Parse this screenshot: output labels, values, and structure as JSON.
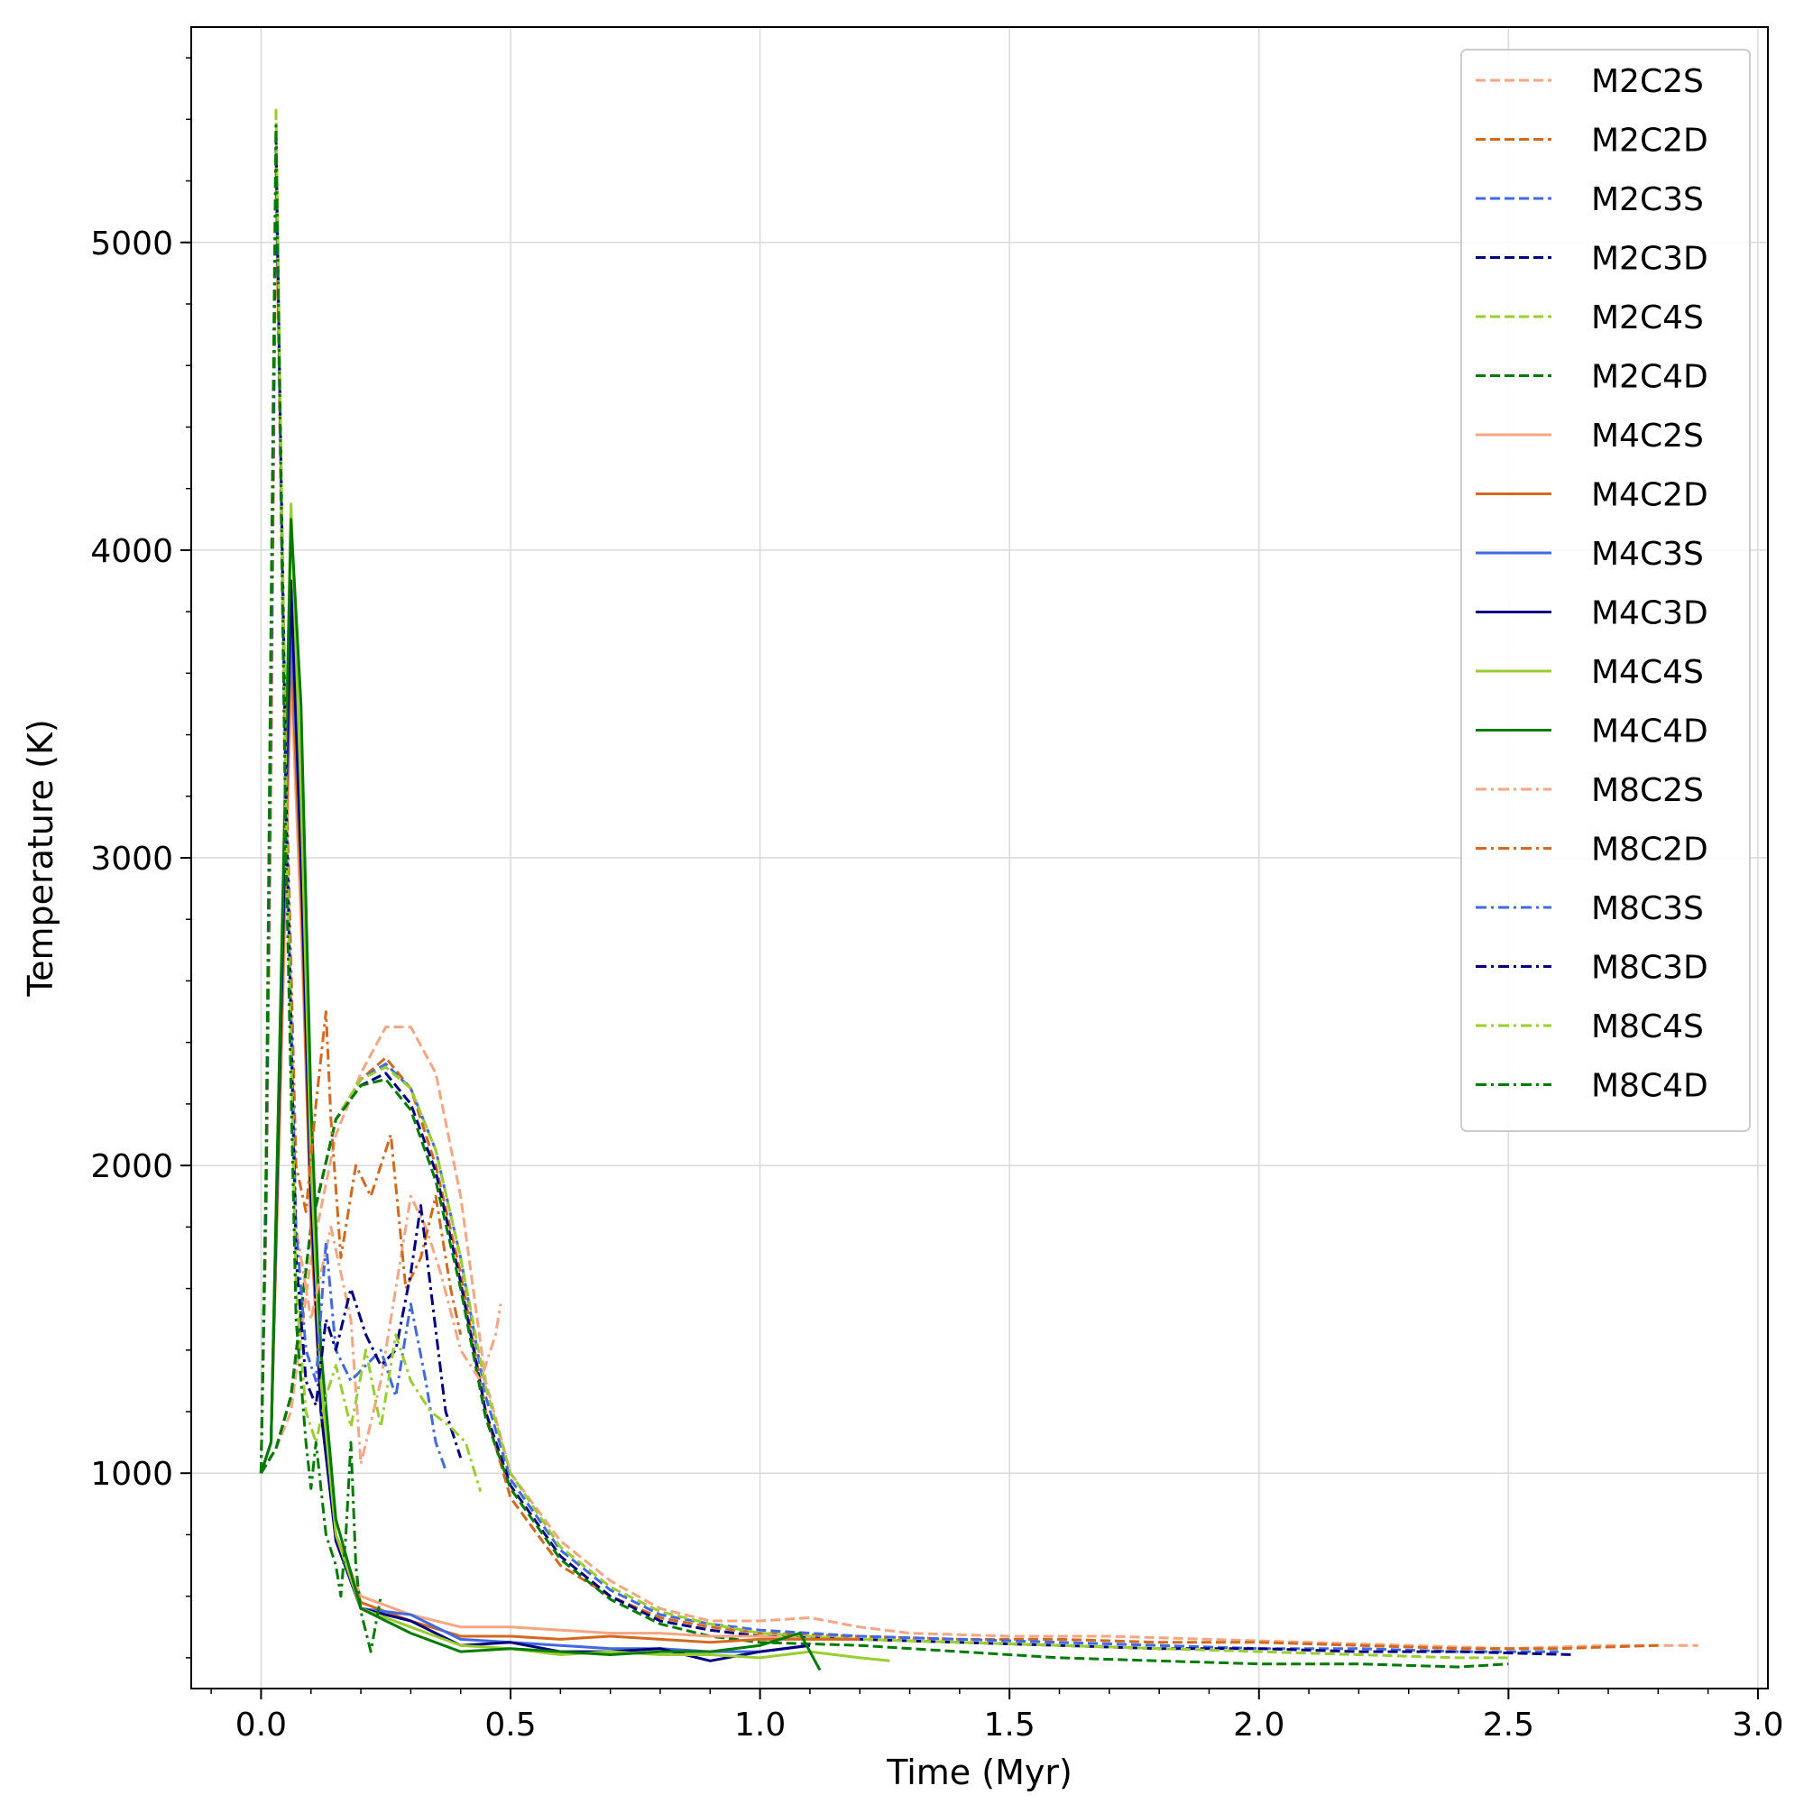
{
  "chart_data": {
    "type": "line",
    "xlabel": "Time (Myr)",
    "ylabel": "Temperature (K)",
    "xlim": [
      -0.14,
      3.02
    ],
    "ylim": [
      300,
      5700
    ],
    "xticks": [
      0.0,
      0.5,
      1.0,
      1.5,
      2.0,
      2.5,
      3.0
    ],
    "xtick_labels": [
      "0.0",
      "0.5",
      "1.0",
      "1.5",
      "2.0",
      "2.5",
      "3.0"
    ],
    "yticks": [
      1000,
      2000,
      3000,
      4000,
      5000
    ],
    "ytick_labels": [
      "1000",
      "2000",
      "3000",
      "4000",
      "5000"
    ],
    "grid": true,
    "legend_position": "top-right",
    "series": [
      {
        "name": "M2C2S",
        "color": "#f4a582",
        "style": "dashed",
        "x": [
          0.0,
          0.03,
          0.06,
          0.1,
          0.15,
          0.2,
          0.25,
          0.3,
          0.35,
          0.4,
          0.45,
          0.5,
          0.6,
          0.7,
          0.8,
          0.9,
          1.0,
          1.1,
          1.2,
          1.3,
          1.5,
          1.7,
          1.9,
          2.1,
          2.3,
          2.5,
          2.7,
          2.88
        ],
        "y": [
          1000,
          1080,
          1200,
          1700,
          2100,
          2300,
          2450,
          2450,
          2300,
          1900,
          1300,
          1000,
          780,
          650,
          560,
          520,
          520,
          530,
          500,
          480,
          470,
          470,
          460,
          450,
          440,
          430,
          440,
          440
        ]
      },
      {
        "name": "M2C2D",
        "color": "#d2691e",
        "style": "dashed",
        "x": [
          0.0,
          0.03,
          0.06,
          0.1,
          0.15,
          0.2,
          0.25,
          0.3,
          0.35,
          0.4,
          0.45,
          0.5,
          0.6,
          0.7,
          0.8,
          0.9,
          1.0,
          1.2,
          1.4,
          1.6,
          1.8,
          2.0,
          2.2,
          2.4,
          2.6,
          2.8
        ],
        "y": [
          1000,
          1080,
          1250,
          1800,
          2150,
          2280,
          2350,
          2250,
          2000,
          1650,
          1200,
          920,
          700,
          600,
          530,
          500,
          480,
          470,
          460,
          460,
          450,
          450,
          440,
          430,
          430,
          440
        ]
      },
      {
        "name": "M2C3S",
        "color": "#4169e1",
        "style": "dashed",
        "x": [
          0.0,
          0.03,
          0.06,
          0.1,
          0.15,
          0.2,
          0.25,
          0.3,
          0.35,
          0.4,
          0.45,
          0.5,
          0.6,
          0.7,
          0.8,
          0.9,
          1.0,
          1.2,
          1.4,
          1.6,
          1.8,
          2.0,
          2.2,
          2.4,
          2.6
        ],
        "y": [
          1000,
          1080,
          1250,
          1800,
          2150,
          2280,
          2330,
          2250,
          2050,
          1700,
          1250,
          980,
          750,
          620,
          540,
          510,
          490,
          470,
          460,
          450,
          440,
          430,
          430,
          420,
          420
        ]
      },
      {
        "name": "M2C3D",
        "color": "#000080",
        "style": "dashed",
        "x": [
          0.0,
          0.03,
          0.06,
          0.1,
          0.15,
          0.2,
          0.25,
          0.3,
          0.35,
          0.4,
          0.45,
          0.5,
          0.6,
          0.7,
          0.8,
          0.9,
          1.0,
          1.2,
          1.4,
          1.6,
          1.8,
          2.0,
          2.2,
          2.4,
          2.63
        ],
        "y": [
          1000,
          1080,
          1250,
          1800,
          2150,
          2260,
          2300,
          2200,
          1980,
          1620,
          1200,
          960,
          730,
          600,
          520,
          490,
          470,
          460,
          450,
          440,
          430,
          430,
          420,
          420,
          410
        ]
      },
      {
        "name": "M2C4S",
        "color": "#9acd32",
        "style": "dashed",
        "x": [
          0.0,
          0.03,
          0.06,
          0.1,
          0.15,
          0.2,
          0.25,
          0.3,
          0.35,
          0.4,
          0.45,
          0.5,
          0.6,
          0.7,
          0.8,
          0.9,
          1.0,
          1.2,
          1.4,
          1.6,
          1.8,
          2.0,
          2.2,
          2.4,
          2.5
        ],
        "y": [
          1000,
          1080,
          1250,
          1800,
          2150,
          2280,
          2320,
          2250,
          2050,
          1700,
          1280,
          1000,
          760,
          630,
          550,
          510,
          480,
          460,
          450,
          440,
          430,
          420,
          410,
          400,
          400
        ]
      },
      {
        "name": "M2C4D",
        "color": "#007a00",
        "style": "dashed",
        "x": [
          0.0,
          0.03,
          0.06,
          0.1,
          0.15,
          0.2,
          0.25,
          0.3,
          0.35,
          0.4,
          0.45,
          0.5,
          0.6,
          0.7,
          0.8,
          0.9,
          1.0,
          1.2,
          1.4,
          1.6,
          1.8,
          2.0,
          2.2,
          2.4,
          2.5
        ],
        "y": [
          1000,
          1080,
          1250,
          1800,
          2150,
          2260,
          2280,
          2180,
          1950,
          1600,
          1180,
          950,
          720,
          590,
          510,
          470,
          450,
          440,
          420,
          400,
          390,
          380,
          380,
          370,
          380
        ]
      },
      {
        "name": "M4C2S",
        "color": "#f4a582",
        "style": "solid",
        "x": [
          0.0,
          0.02,
          0.04,
          0.06,
          0.08,
          0.1,
          0.12,
          0.15,
          0.2,
          0.3,
          0.4,
          0.5,
          0.6,
          0.7,
          0.8,
          0.9,
          1.0,
          1.1,
          1.2
        ],
        "y": [
          1000,
          1100,
          2300,
          3600,
          2800,
          1800,
          1200,
          800,
          600,
          540,
          500,
          500,
          490,
          480,
          480,
          470,
          470,
          460,
          460
        ]
      },
      {
        "name": "M4C2D",
        "color": "#d2691e",
        "style": "solid",
        "x": [
          0.0,
          0.02,
          0.04,
          0.06,
          0.08,
          0.1,
          0.12,
          0.15,
          0.2,
          0.3,
          0.4,
          0.5,
          0.6,
          0.7,
          0.8,
          0.9,
          1.0,
          1.1,
          1.2
        ],
        "y": [
          1000,
          1100,
          2400,
          3700,
          2900,
          1800,
          1200,
          800,
          580,
          520,
          470,
          470,
          460,
          470,
          460,
          450,
          460,
          460,
          460
        ]
      },
      {
        "name": "M4C3S",
        "color": "#4169e1",
        "style": "solid",
        "x": [
          0.0,
          0.02,
          0.04,
          0.06,
          0.08,
          0.1,
          0.12,
          0.15,
          0.2,
          0.3,
          0.4,
          0.5,
          0.6,
          0.7,
          0.8,
          0.9,
          1.0,
          1.1
        ],
        "y": [
          1000,
          1100,
          2500,
          3800,
          3000,
          1900,
          1200,
          780,
          560,
          540,
          460,
          450,
          440,
          430,
          430,
          420,
          420,
          440
        ]
      },
      {
        "name": "M4C3D",
        "color": "#000080",
        "style": "solid",
        "x": [
          0.0,
          0.02,
          0.04,
          0.06,
          0.08,
          0.1,
          0.12,
          0.15,
          0.2,
          0.3,
          0.4,
          0.5,
          0.6,
          0.7,
          0.8,
          0.9,
          1.0,
          1.1
        ],
        "y": [
          1000,
          1100,
          2500,
          3900,
          3000,
          1900,
          1200,
          780,
          560,
          520,
          440,
          450,
          420,
          420,
          430,
          390,
          420,
          440
        ]
      },
      {
        "name": "M4C4S",
        "color": "#9acd32",
        "style": "solid",
        "x": [
          0.0,
          0.02,
          0.04,
          0.06,
          0.08,
          0.1,
          0.12,
          0.15,
          0.2,
          0.3,
          0.4,
          0.5,
          0.6,
          0.7,
          0.8,
          0.9,
          1.0,
          1.1,
          1.2,
          1.26
        ],
        "y": [
          1000,
          1100,
          2600,
          4150,
          3200,
          2000,
          1300,
          800,
          560,
          500,
          440,
          430,
          410,
          420,
          410,
          410,
          400,
          420,
          400,
          390
        ]
      },
      {
        "name": "M4C4D",
        "color": "#007a00",
        "style": "solid",
        "x": [
          0.0,
          0.02,
          0.04,
          0.06,
          0.08,
          0.1,
          0.12,
          0.15,
          0.2,
          0.3,
          0.4,
          0.5,
          0.6,
          0.7,
          0.8,
          0.9,
          1.0,
          1.08,
          1.12
        ],
        "y": [
          1000,
          1100,
          2600,
          4100,
          3500,
          2200,
          1400,
          850,
          560,
          480,
          420,
          430,
          420,
          410,
          420,
          420,
          440,
          480,
          360
        ]
      },
      {
        "name": "M8C2S",
        "color": "#f4a582",
        "style": "dashdot",
        "x": [
          0.0,
          0.01,
          0.02,
          0.03,
          0.05,
          0.07,
          0.1,
          0.14,
          0.18,
          0.2,
          0.24,
          0.27,
          0.3,
          0.33,
          0.36,
          0.4,
          0.44,
          0.47,
          0.48
        ],
        "y": [
          1000,
          1800,
          3200,
          5200,
          3000,
          1800,
          1500,
          1800,
          1500,
          1030,
          1300,
          1600,
          1900,
          1800,
          1650,
          1400,
          1300,
          1450,
          1550
        ]
      },
      {
        "name": "M8C2D",
        "color": "#d2691e",
        "style": "dashdot",
        "x": [
          0.0,
          0.01,
          0.02,
          0.03,
          0.05,
          0.07,
          0.09,
          0.11,
          0.13,
          0.14,
          0.16,
          0.19,
          0.22,
          0.26,
          0.29,
          0.32,
          0.35,
          0.38,
          0.4
        ],
        "y": [
          1000,
          1900,
          3400,
          5250,
          3300,
          2000,
          1850,
          2200,
          2500,
          2150,
          1700,
          2000,
          1900,
          2100,
          1600,
          1700,
          1900,
          1600,
          1450
        ]
      },
      {
        "name": "M8C3S",
        "color": "#4169e1",
        "style": "dashdot",
        "x": [
          0.0,
          0.01,
          0.02,
          0.03,
          0.05,
          0.07,
          0.09,
          0.11,
          0.13,
          0.15,
          0.18,
          0.21,
          0.24,
          0.27,
          0.3,
          0.33,
          0.35,
          0.37
        ],
        "y": [
          1000,
          1900,
          3500,
          5300,
          3200,
          1800,
          1400,
          1300,
          1750,
          1400,
          1300,
          1350,
          1400,
          1250,
          1550,
          1300,
          1100,
          1010
        ]
      },
      {
        "name": "M8C3D",
        "color": "#000080",
        "style": "dashdot",
        "x": [
          0.0,
          0.01,
          0.02,
          0.03,
          0.05,
          0.07,
          0.09,
          0.11,
          0.13,
          0.15,
          0.18,
          0.21,
          0.24,
          0.27,
          0.3,
          0.32,
          0.34,
          0.37,
          0.4
        ],
        "y": [
          1000,
          1950,
          3600,
          5350,
          3200,
          1700,
          1300,
          1220,
          1500,
          1400,
          1600,
          1450,
          1350,
          1400,
          1650,
          1870,
          1600,
          1200,
          1050
        ]
      },
      {
        "name": "M8C4S",
        "color": "#9acd32",
        "style": "dashdot",
        "x": [
          0.0,
          0.01,
          0.02,
          0.03,
          0.05,
          0.07,
          0.09,
          0.11,
          0.13,
          0.15,
          0.18,
          0.21,
          0.24,
          0.27,
          0.3,
          0.34,
          0.38,
          0.41,
          0.44
        ],
        "y": [
          1000,
          2000,
          3700,
          5430,
          3200,
          1600,
          1200,
          1100,
          1250,
          1350,
          1150,
          1400,
          1150,
          1450,
          1300,
          1200,
          1150,
          1100,
          940
        ]
      },
      {
        "name": "M8C4D",
        "color": "#007a00",
        "style": "dashdot",
        "x": [
          0.0,
          0.01,
          0.02,
          0.03,
          0.05,
          0.07,
          0.09,
          0.1,
          0.11,
          0.13,
          0.15,
          0.16,
          0.17,
          0.18,
          0.19,
          0.2,
          0.22,
          0.24
        ],
        "y": [
          1000,
          2000,
          3800,
          5380,
          3000,
          1500,
          1100,
          950,
          1100,
          800,
          700,
          600,
          800,
          1100,
          700,
          550,
          420,
          600
        ]
      }
    ]
  }
}
